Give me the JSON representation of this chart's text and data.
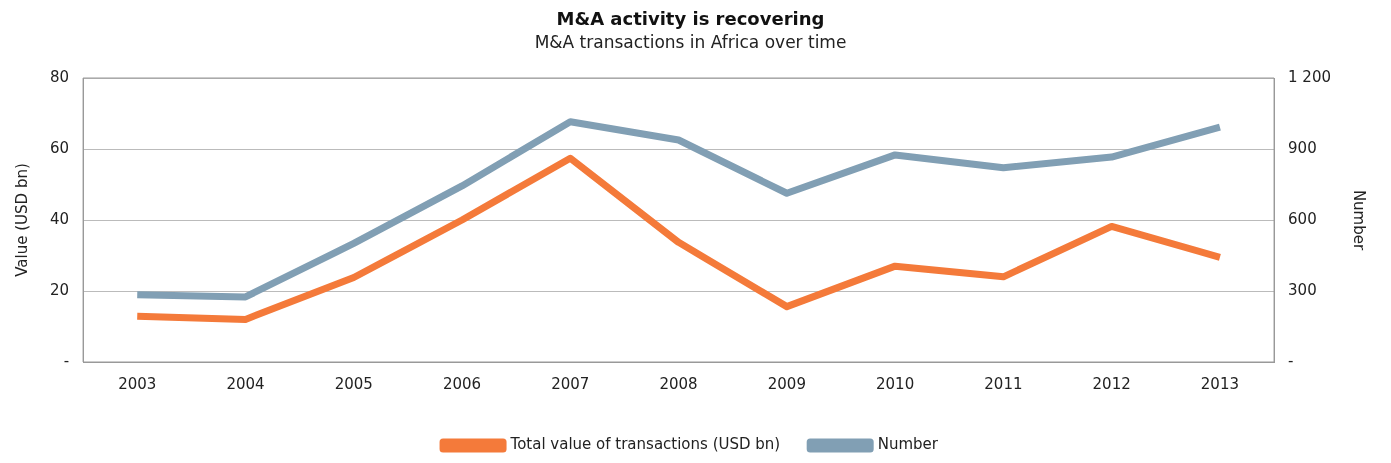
{
  "chart_data": {
    "type": "line",
    "title": "M&A activity is recovering",
    "subtitle": "M&A transactions in Africa over time",
    "ylabel": "Value (USD bn)",
    "y2label": "Number",
    "categories": [
      "2003",
      "2004",
      "2005",
      "2006",
      "2007",
      "2008",
      "2009",
      "2010",
      "2011",
      "2012",
      "2013"
    ],
    "series": [
      {
        "name": "Total value of transactions (USD bn)",
        "color": "#f47a3a",
        "values": [
          12.9,
          12,
          23.8,
          40,
          57.4,
          33.7,
          15.6,
          27,
          24,
          38.2,
          29.5
        ]
      },
      {
        "name": "Number",
        "color": "#819fb4",
        "axis": "y2",
        "values": [
          284,
          275,
          501,
          744,
          1015,
          938,
          713,
          875,
          821,
          866,
          992
        ]
      }
    ],
    "ylim": [
      0,
      80
    ],
    "yticks": [
      {
        "value": 0,
        "label": "-"
      },
      20,
      40,
      60,
      80
    ],
    "y2lim": [
      0,
      1200
    ],
    "y2ticks": [
      {
        "value": 0,
        "label": "-"
      },
      300,
      600,
      900,
      {
        "value": 1200,
        "label": "1 200"
      }
    ],
    "grid": "y",
    "legend": "bottom",
    "marker": "none",
    "line_style": "solid"
  }
}
